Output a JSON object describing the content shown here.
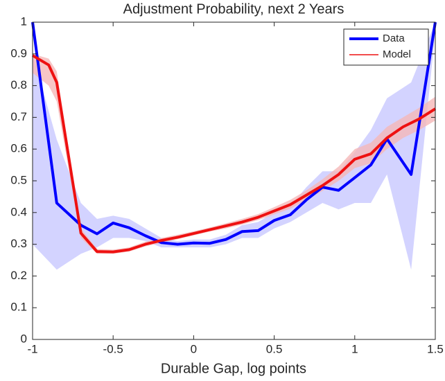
{
  "chart_data": {
    "type": "line",
    "title": "Adjustment Probability, next 2 Years",
    "x_label": "Durable Gap, log points",
    "xlim": [
      -1,
      1.5
    ],
    "xticks": [
      -1,
      -0.5,
      0,
      0.5,
      1,
      1.5
    ],
    "ylim": [
      0,
      1
    ],
    "yticks": [
      0,
      0.1,
      0.2,
      0.3,
      0.4,
      0.5,
      0.6,
      0.7,
      0.8,
      0.9,
      1
    ],
    "legend": "top-right",
    "series": [
      {
        "name": "Data",
        "color": "#0000ff",
        "band_color": "#c8c8ff",
        "line_width": 4,
        "x": [
          -1,
          -0.85,
          -0.7,
          -0.6,
          -0.5,
          -0.4,
          -0.3,
          -0.2,
          -0.1,
          0,
          0.1,
          0.2,
          0.3,
          0.4,
          0.5,
          0.6,
          0.7,
          0.8,
          0.9,
          1.0,
          1.1,
          1.2,
          1.35,
          1.5
        ],
        "values": [
          1.0,
          0.43,
          0.36,
          0.333,
          0.367,
          0.352,
          0.327,
          0.305,
          0.3,
          0.304,
          0.303,
          0.315,
          0.34,
          0.343,
          0.375,
          0.393,
          0.44,
          0.48,
          0.47,
          0.51,
          0.55,
          0.632,
          0.52,
          1.0
        ],
        "lower": [
          0.3,
          0.22,
          0.27,
          0.29,
          0.32,
          0.32,
          0.31,
          0.29,
          0.29,
          0.29,
          0.29,
          0.3,
          0.32,
          0.32,
          0.35,
          0.37,
          0.4,
          0.43,
          0.41,
          0.43,
          0.43,
          0.52,
          0.22,
          0.97
        ],
        "upper": [
          0.9,
          0.63,
          0.43,
          0.38,
          0.39,
          0.38,
          0.35,
          0.32,
          0.31,
          0.315,
          0.315,
          0.33,
          0.36,
          0.37,
          0.4,
          0.42,
          0.48,
          0.53,
          0.53,
          0.59,
          0.66,
          0.76,
          0.81,
          1.0
        ]
      },
      {
        "name": "Model",
        "color": "#ee1111",
        "band_color": "#f5b8b8",
        "line_width": 4,
        "x": [
          -1,
          -0.9,
          -0.85,
          -0.7,
          -0.6,
          -0.5,
          -0.4,
          -0.3,
          -0.2,
          -0.1,
          0,
          0.1,
          0.2,
          0.3,
          0.4,
          0.5,
          0.6,
          0.7,
          0.8,
          0.9,
          1.0,
          1.1,
          1.2,
          1.3,
          1.4,
          1.5
        ],
        "values": [
          0.895,
          0.865,
          0.81,
          0.335,
          0.277,
          0.276,
          0.283,
          0.3,
          0.312,
          0.322,
          0.334,
          0.346,
          0.358,
          0.37,
          0.385,
          0.405,
          0.425,
          0.455,
          0.485,
          0.52,
          0.568,
          0.585,
          0.635,
          0.67,
          0.695,
          0.727
        ],
        "lower": [
          0.84,
          0.8,
          0.75,
          0.32,
          0.27,
          0.27,
          0.277,
          0.293,
          0.305,
          0.316,
          0.328,
          0.34,
          0.35,
          0.362,
          0.376,
          0.394,
          0.412,
          0.44,
          0.468,
          0.5,
          0.54,
          0.555,
          0.6,
          0.635,
          0.66,
          0.69
        ],
        "upper": [
          0.9,
          0.885,
          0.845,
          0.35,
          0.285,
          0.283,
          0.29,
          0.308,
          0.32,
          0.33,
          0.341,
          0.353,
          0.366,
          0.38,
          0.395,
          0.417,
          0.44,
          0.47,
          0.505,
          0.545,
          0.6,
          0.62,
          0.67,
          0.7,
          0.73,
          0.765
        ]
      }
    ]
  }
}
